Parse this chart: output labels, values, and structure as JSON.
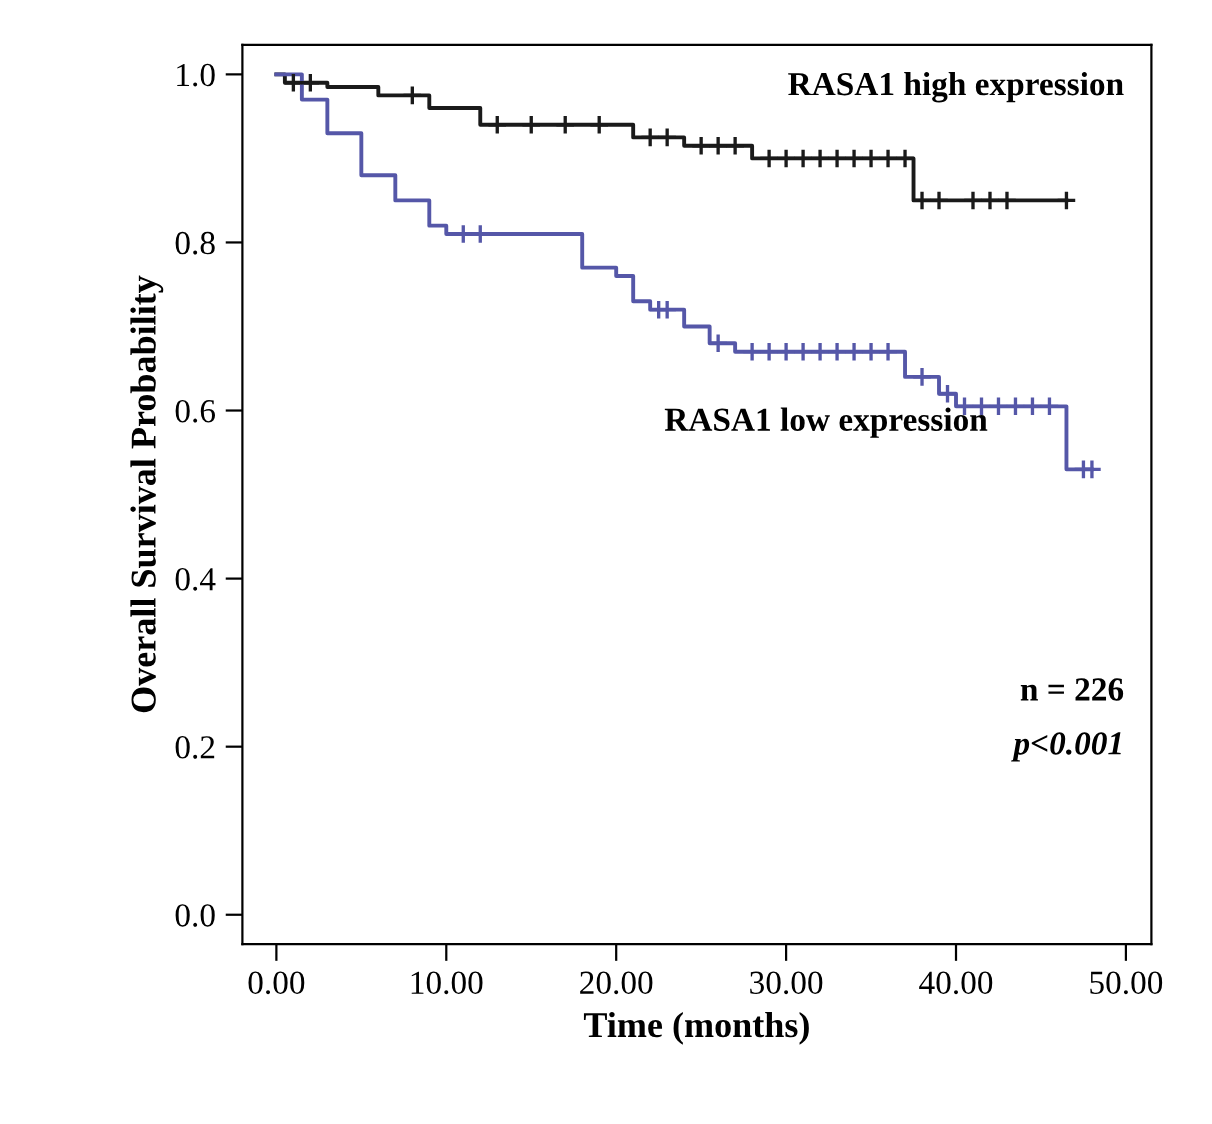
{
  "chart_data": {
    "type": "step",
    "xlabel": "Time (months)",
    "ylabel": "Overall Survival Probability",
    "xlim": [
      -2,
      51.5
    ],
    "ylim": [
      -0.035,
      1.035
    ],
    "xticks": [
      {
        "value": 0,
        "label": "0.00"
      },
      {
        "value": 10,
        "label": "10.00"
      },
      {
        "value": 20,
        "label": "20.00"
      },
      {
        "value": 30,
        "label": "30.00"
      },
      {
        "value": 40,
        "label": "40.00"
      },
      {
        "value": 50,
        "label": "50.00"
      }
    ],
    "yticks": [
      {
        "value": 0,
        "label": "0.0"
      },
      {
        "value": 0.2,
        "label": "0.2"
      },
      {
        "value": 0.4,
        "label": "0.4"
      },
      {
        "value": 0.6,
        "label": "0.6"
      },
      {
        "value": 0.8,
        "label": "0.8"
      },
      {
        "value": 1.0,
        "label": "1.0"
      }
    ],
    "grid": false,
    "legend": false,
    "marker": "none",
    "line_style": "solid",
    "series": [
      {
        "name": "RASA1 high expression",
        "color": "#1a1a1a",
        "x": [
          0,
          0.5,
          3,
          6,
          9,
          12,
          21,
          24,
          28,
          37.5,
          46.5
        ],
        "values": [
          1.0,
          0.99,
          0.985,
          0.975,
          0.96,
          0.94,
          0.925,
          0.915,
          0.9,
          0.85,
          0.85
        ]
      },
      {
        "name": "RASA1 low expression",
        "color": "#5557a8",
        "x": [
          0,
          1.5,
          3,
          5,
          7,
          9,
          10,
          18,
          20,
          21,
          22,
          24,
          25.5,
          27,
          37,
          39,
          40,
          46.5,
          48
        ],
        "values": [
          1.0,
          0.97,
          0.93,
          0.88,
          0.85,
          0.82,
          0.81,
          0.77,
          0.76,
          0.73,
          0.72,
          0.7,
          0.68,
          0.67,
          0.64,
          0.62,
          0.605,
          0.53,
          0.53
        ]
      },
      {
        "type": "scatter",
        "color": "#1a1a1a",
        "marker": "cross",
        "x": [
          1,
          2,
          8,
          13,
          15,
          17,
          19,
          22,
          23,
          25,
          26,
          27,
          29,
          30,
          31,
          32,
          33,
          34,
          35,
          36,
          37,
          38,
          39,
          41,
          42,
          43,
          46.5
        ],
        "values": [
          0.99,
          0.99,
          0.975,
          0.94,
          0.94,
          0.94,
          0.94,
          0.925,
          0.925,
          0.915,
          0.915,
          0.915,
          0.9,
          0.9,
          0.9,
          0.9,
          0.9,
          0.9,
          0.9,
          0.9,
          0.9,
          0.85,
          0.85,
          0.85,
          0.85,
          0.85,
          0.85
        ]
      },
      {
        "type": "scatter",
        "color": "#5557a8",
        "marker": "cross",
        "x": [
          11,
          12,
          22.5,
          23,
          26,
          28,
          29,
          30,
          31,
          32,
          33,
          34,
          35,
          36,
          38,
          39.5,
          40.5,
          41.5,
          42.5,
          43.5,
          44.5,
          45.5,
          47.5,
          48
        ],
        "values": [
          0.81,
          0.81,
          0.72,
          0.72,
          0.68,
          0.67,
          0.67,
          0.67,
          0.67,
          0.67,
          0.67,
          0.67,
          0.67,
          0.67,
          0.64,
          0.62,
          0.605,
          0.605,
          0.605,
          0.605,
          0.605,
          0.605,
          0.53,
          0.53
        ]
      }
    ],
    "annotations": [
      "n = 226",
      "p<0.001"
    ]
  }
}
